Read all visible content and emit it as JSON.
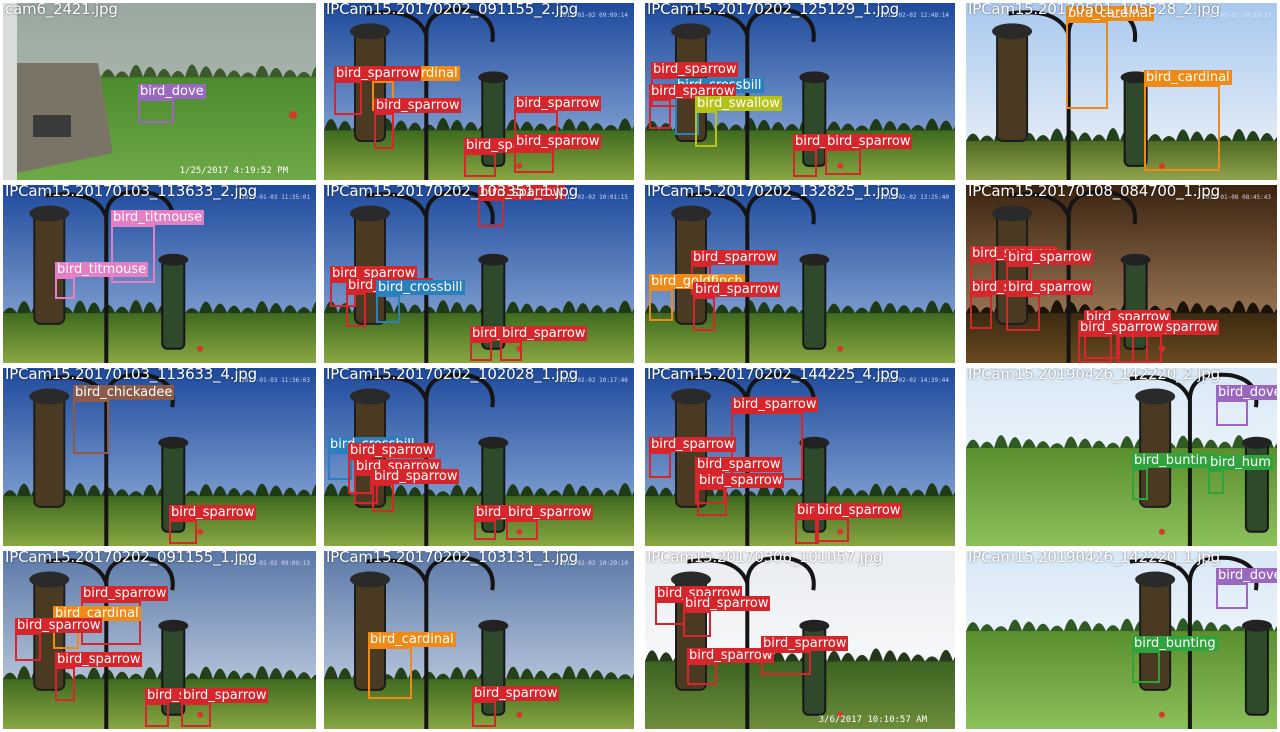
{
  "colors": {
    "bird_sparrow": "#d7262b",
    "bird_cardinal": "#f08a16",
    "bird_dove": "#9b68c0",
    "bird_swallow": "#b6c217",
    "bird_crossbill": "#2a7fbd",
    "bird_titmouse": "#e27fc5",
    "bird_goldfinch": "#f08a16",
    "bird_chickadee": "#8c5a49",
    "bird_bunting": "#2fa33c",
    "bird_hummingbird": "#2fa33c"
  },
  "tiles": [
    {
      "filename": "cam6_2421.jpg",
      "scene": "yard",
      "datestamp": "1/25/2017  4:19:52 PM",
      "camstamp": "",
      "detections": [
        {
          "label": "bird_dove",
          "cls": "bird_dove"
        }
      ]
    },
    {
      "filename": "IPCam15.20170202_091155_2.jpg",
      "scene": "feeder-sky",
      "datestamp": "",
      "camstamp": "2017-02-02 09:09:14",
      "detections": [
        {
          "label": "bird_cardinal",
          "cls": "bird_cardinal"
        },
        {
          "label": "bird_sparrow",
          "cls": "bird_sparrow"
        },
        {
          "label": "bird_sparrow",
          "cls": "bird_sparrow"
        },
        {
          "label": "bird_sparrow",
          "cls": "bird_sparrow"
        },
        {
          "label": "bird_sparrow",
          "cls": "bird_sparrow"
        },
        {
          "label": "bird_sparrow",
          "cls": "bird_sparrow"
        }
      ]
    },
    {
      "filename": "IPCam15.20170202_125129_1.jpg",
      "scene": "feeder-sky",
      "datestamp": "",
      "camstamp": "2017-02-02 12:48:14",
      "detections": [
        {
          "label": "bird_sparrow",
          "cls": "bird_sparrow"
        },
        {
          "label": "bird_crossbill",
          "cls": "bird_crossbill"
        },
        {
          "label": "bird_sparrow",
          "cls": "bird_sparrow"
        },
        {
          "label": "bird_swallow",
          "cls": "bird_swallow"
        },
        {
          "label": "bird_sparrow",
          "cls": "bird_sparrow"
        },
        {
          "label": "bird_sparrow",
          "cls": "bird_sparrow"
        }
      ]
    },
    {
      "filename": "IPCam15.20170501_105528_2.jpg",
      "scene": "feeder-bright",
      "datestamp": "",
      "camstamp": "2017-05-01 10:53:37",
      "detections": [
        {
          "label": "bird_cardinal",
          "cls": "bird_cardinal"
        },
        {
          "label": "bird_cardinal",
          "cls": "bird_cardinal"
        }
      ]
    },
    {
      "filename": "IPCam15.20170103_113633_2.jpg",
      "scene": "feeder-sky",
      "datestamp": "",
      "camstamp": "2017-01-03 11:35:01",
      "detections": [
        {
          "label": "bird_titmouse",
          "cls": "bird_titmouse"
        },
        {
          "label": "bird_titmouse",
          "cls": "bird_titmouse"
        }
      ]
    },
    {
      "filename": "IPCam15.20170202_103351_1.jpg",
      "scene": "feeder-sky",
      "datestamp": "",
      "camstamp": "2017-02-02 10:01:15",
      "detections": [
        {
          "label": "bird_sparrow",
          "cls": "bird_sparrow"
        },
        {
          "label": "bird_sparrow",
          "cls": "bird_sparrow"
        },
        {
          "label": "bird_sparrow",
          "cls": "bird_sparrow"
        },
        {
          "label": "bird_crossbill",
          "cls": "bird_crossbill"
        },
        {
          "label": "bird_sparrow",
          "cls": "bird_sparrow"
        },
        {
          "label": "bird_sparrow",
          "cls": "bird_sparrow"
        }
      ]
    },
    {
      "filename": "IPCam15.20170202_132825_1.jpg",
      "scene": "feeder-sky",
      "datestamp": "",
      "camstamp": "2017-02-02 13:25:40",
      "detections": [
        {
          "label": "bird_sparrow",
          "cls": "bird_sparrow"
        },
        {
          "label": "bird_goldfinch",
          "cls": "bird_goldfinch"
        },
        {
          "label": "bird_sparrow",
          "cls": "bird_sparrow"
        }
      ]
    },
    {
      "filename": "IPCam15.20170108_084700_1.jpg",
      "scene": "feeder-dusk",
      "datestamp": "",
      "camstamp": "2017-01-08 08:45:43",
      "detections": [
        {
          "label": "bird_sparrow",
          "cls": "bird_sparrow"
        },
        {
          "label": "bird_sparrow",
          "cls": "bird_sparrow"
        },
        {
          "label": "bird_sparrow",
          "cls": "bird_sparrow"
        },
        {
          "label": "bird_sparrow",
          "cls": "bird_sparrow"
        },
        {
          "label": "bird_sparrow",
          "cls": "bird_sparrow"
        },
        {
          "label": "bird_sparrow",
          "cls": "bird_sparrow"
        },
        {
          "label": "bird_sparrow",
          "cls": "bird_sparrow"
        },
        {
          "label": "bird_sparrow",
          "cls": "bird_sparrow"
        }
      ]
    },
    {
      "filename": "IPCam15.20170103_113633_4.jpg",
      "scene": "feeder-sky",
      "datestamp": "",
      "camstamp": "2017-01-03 11:36:03",
      "detections": [
        {
          "label": "bird_chickadee",
          "cls": "bird_chickadee"
        },
        {
          "label": "bird_sparrow",
          "cls": "bird_sparrow"
        }
      ]
    },
    {
      "filename": "IPCam15.20170202_102028_1.jpg",
      "scene": "feeder-sky",
      "datestamp": "",
      "camstamp": "2017-02-02 10:17:46",
      "detections": [
        {
          "label": "bird_crossbill",
          "cls": "bird_crossbill"
        },
        {
          "label": "bird_sparrow",
          "cls": "bird_sparrow"
        },
        {
          "label": "bird_sparrow",
          "cls": "bird_sparrow"
        },
        {
          "label": "bird_sparrow",
          "cls": "bird_sparrow"
        },
        {
          "label": "bird_sparrow",
          "cls": "bird_sparrow"
        },
        {
          "label": "bird_sparrow",
          "cls": "bird_sparrow"
        }
      ]
    },
    {
      "filename": "IPCam15.20170202_144225_4.jpg",
      "scene": "feeder-sky",
      "datestamp": "",
      "camstamp": "2017-02-02 14:39:44",
      "detections": [
        {
          "label": "bird_sparrow",
          "cls": "bird_sparrow"
        },
        {
          "label": "bird_sparrow",
          "cls": "bird_sparrow"
        },
        {
          "label": "bird_sparrow",
          "cls": "bird_sparrow"
        },
        {
          "label": "bird_sparrow",
          "cls": "bird_sparrow"
        },
        {
          "label": "bird_sparrow",
          "cls": "bird_sparrow"
        },
        {
          "label": "bird_sparrow",
          "cls": "bird_sparrow"
        }
      ]
    },
    {
      "filename": "IPCam15.20190426_142220_2.jpg",
      "scene": "feeder-green",
      "datestamp": "",
      "camstamp": "",
      "detections": [
        {
          "label": "bird_dove",
          "cls": "bird_dove"
        },
        {
          "label": "bird_bunting",
          "cls": "bird_bunting"
        },
        {
          "label": "bird_hum",
          "cls": "bird_hummingbird"
        }
      ]
    },
    {
      "filename": "IPCam15.20170202_091155_1.jpg",
      "scene": "feeder-hazy",
      "datestamp": "",
      "camstamp": "2017-02-02 09:09:13",
      "detections": [
        {
          "label": "bird_sparrow",
          "cls": "bird_sparrow"
        },
        {
          "label": "bird_cardinal",
          "cls": "bird_cardinal"
        },
        {
          "label": "bird_sparrow",
          "cls": "bird_sparrow"
        },
        {
          "label": "bird_sparrow",
          "cls": "bird_sparrow"
        },
        {
          "label": "bird_sparrow",
          "cls": "bird_sparrow"
        },
        {
          "label": "bird_sparrow",
          "cls": "bird_sparrow"
        }
      ]
    },
    {
      "filename": "IPCam15.20170202_103131_1.jpg",
      "scene": "feeder-hazy",
      "datestamp": "",
      "camstamp": "2017-02-02 10:29:10",
      "detections": [
        {
          "label": "bird_cardinal",
          "cls": "bird_cardinal"
        },
        {
          "label": "bird_sparrow",
          "cls": "bird_sparrow"
        }
      ]
    },
    {
      "filename": "IPCam15.20170306_101057.jpg",
      "scene": "feeder-white",
      "datestamp": "3/6/2017  10:10:57 AM",
      "camstamp": "",
      "detections": [
        {
          "label": "bird_sparrow",
          "cls": "bird_sparrow"
        },
        {
          "label": "bird_sparrow",
          "cls": "bird_sparrow"
        },
        {
          "label": "bird_sparrow",
          "cls": "bird_sparrow"
        },
        {
          "label": "bird_sparrow",
          "cls": "bird_sparrow"
        }
      ]
    },
    {
      "filename": "IPCam15.20190426_142220_1.jpg",
      "scene": "feeder-green",
      "datestamp": "",
      "camstamp": "",
      "detections": [
        {
          "label": "bird_dove",
          "cls": "bird_dove"
        },
        {
          "label": "bird_bunting",
          "cls": "bird_bunting"
        }
      ]
    }
  ]
}
